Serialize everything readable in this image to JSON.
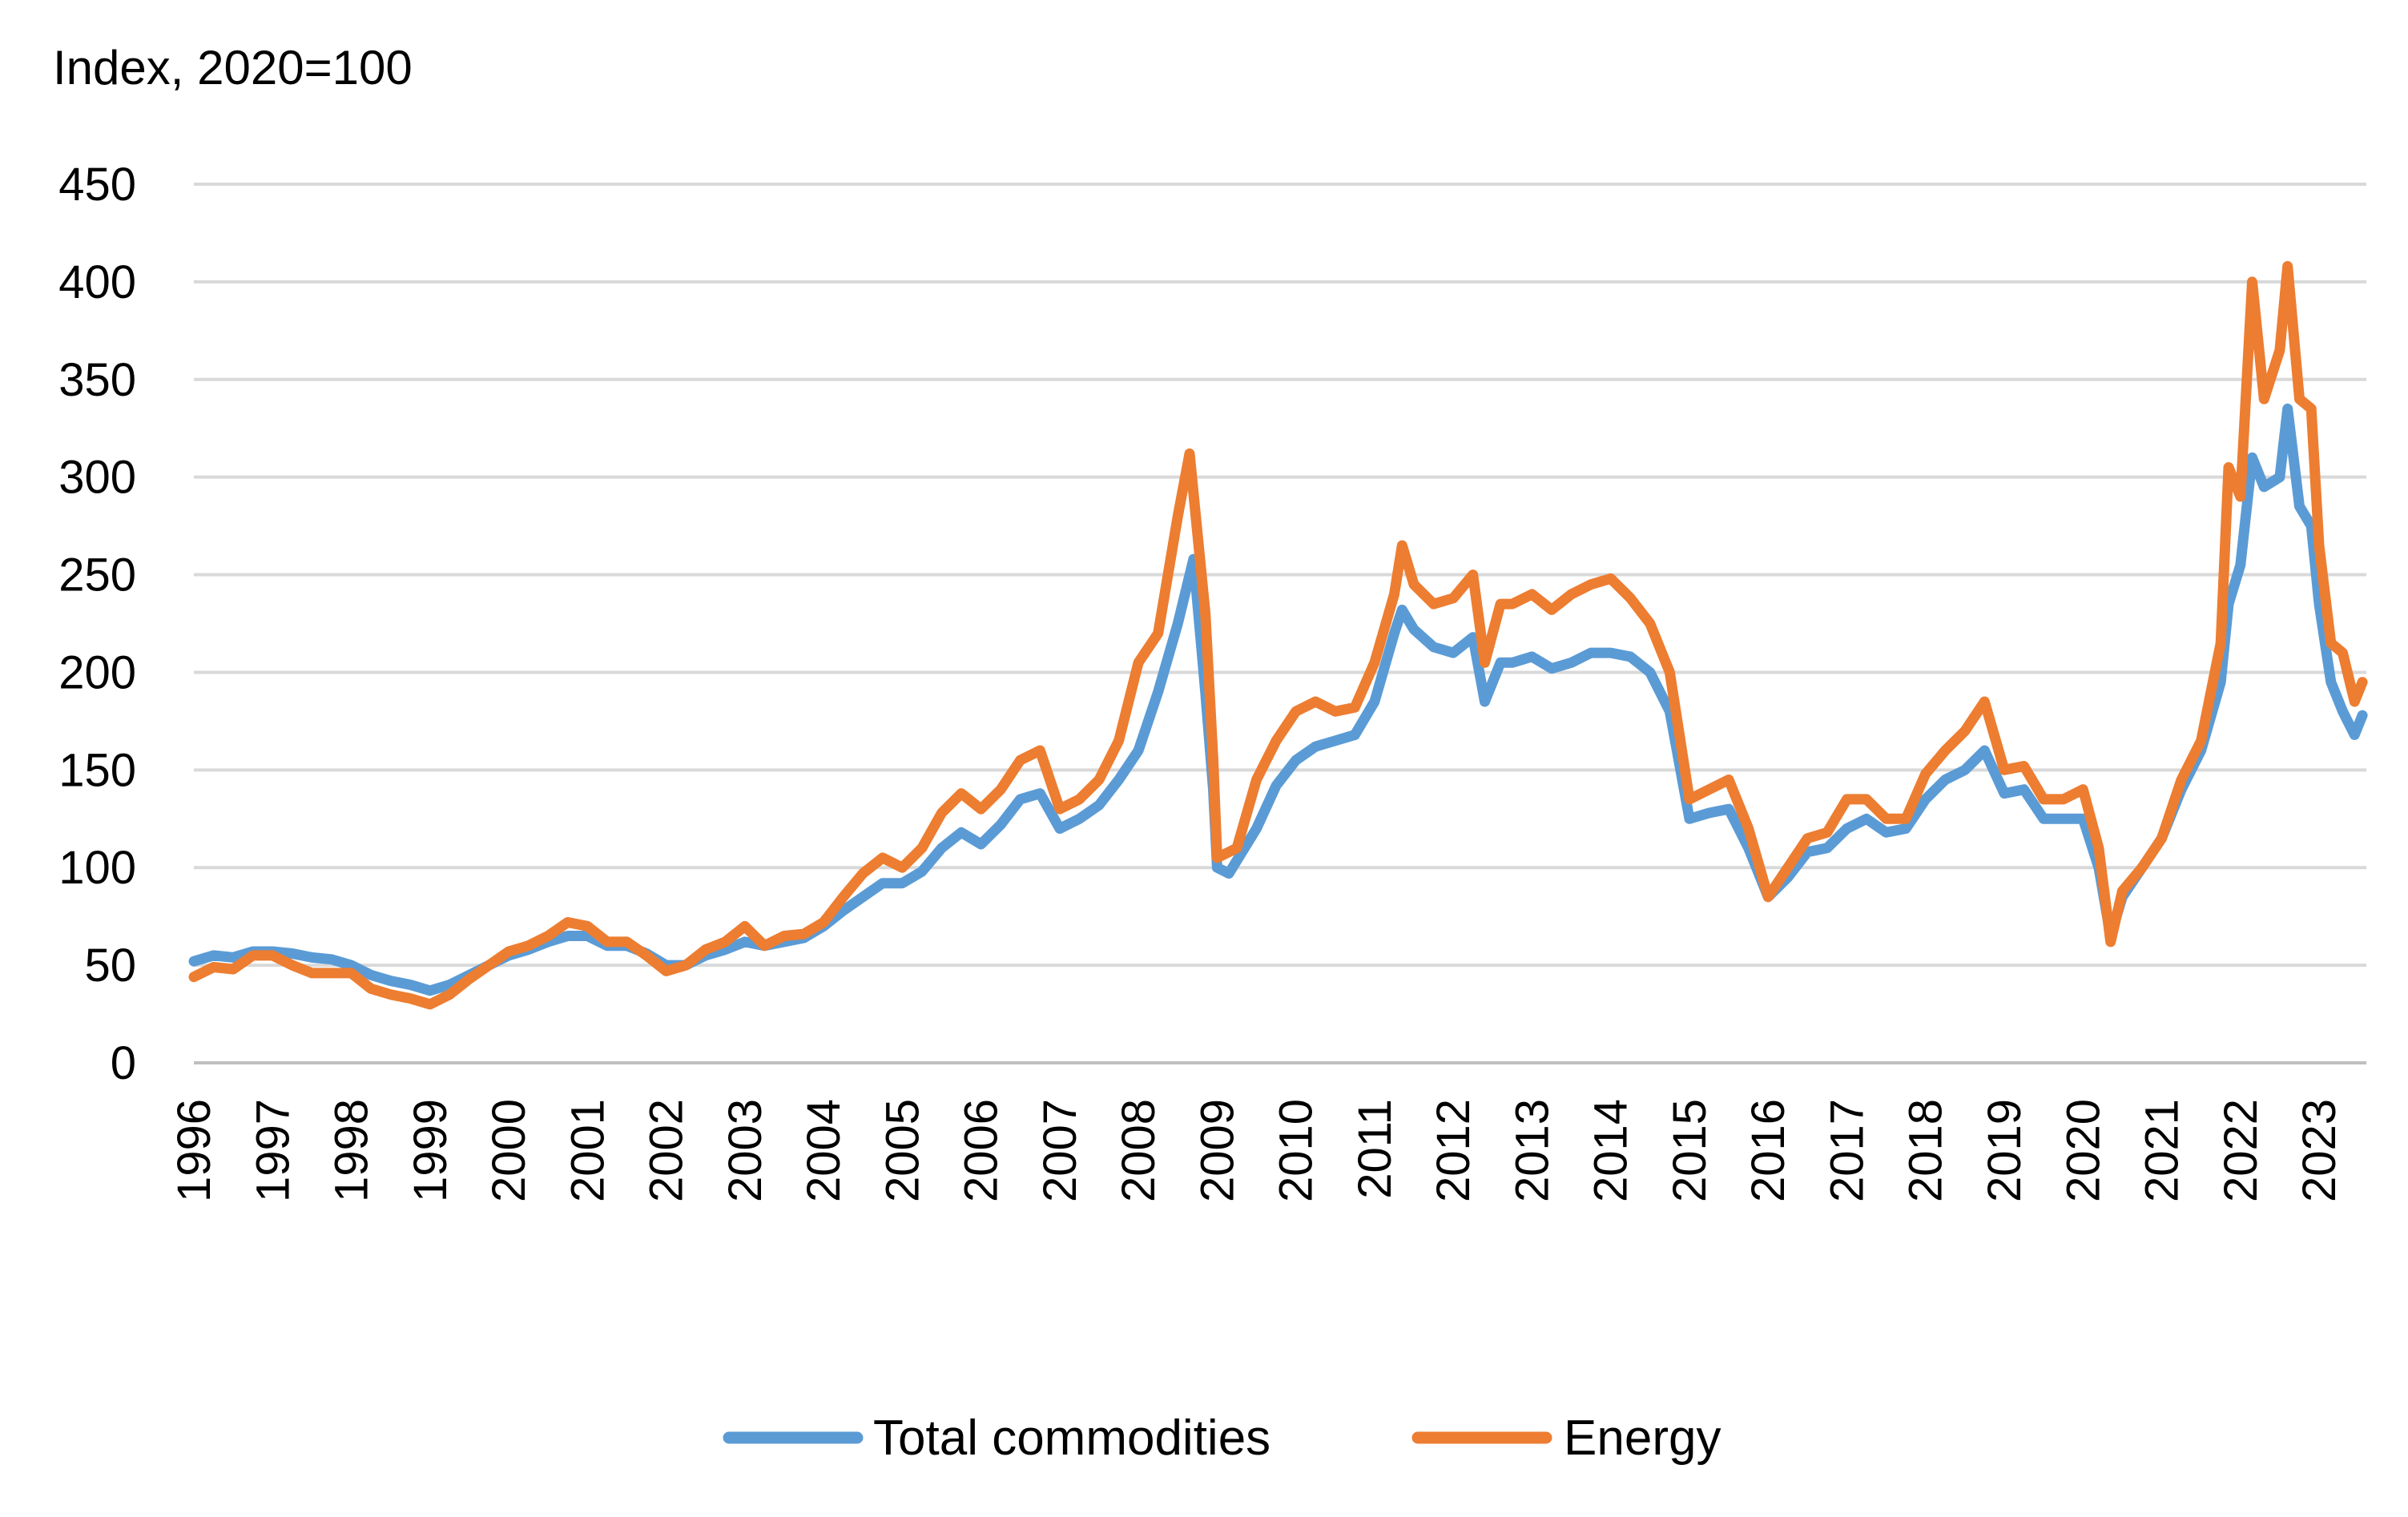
{
  "chart_data": {
    "type": "line",
    "ylabel": "Index, 2020=100",
    "ylim": [
      0,
      450
    ],
    "yticks": [
      0,
      50,
      100,
      150,
      200,
      250,
      300,
      350,
      400,
      450
    ],
    "xlim": [
      1996,
      2023.6
    ],
    "xticks": [
      "1996",
      "1997",
      "1998",
      "1999",
      "2000",
      "2001",
      "2002",
      "2003",
      "2004",
      "2005",
      "2006",
      "2007",
      "2008",
      "2009",
      "2010",
      "2011",
      "2012",
      "2013",
      "2014",
      "2015",
      "2016",
      "2017",
      "2018",
      "2019",
      "2020",
      "2021",
      "2022",
      "2023"
    ],
    "grid": "horizontal",
    "legend_position": "bottom",
    "series": [
      {
        "name": "Total commodities",
        "color": "#5B9BD5",
        "points": [
          [
            1996.0,
            52
          ],
          [
            1996.25,
            55
          ],
          [
            1996.5,
            54
          ],
          [
            1996.75,
            57
          ],
          [
            1997.0,
            57
          ],
          [
            1997.25,
            56
          ],
          [
            1997.5,
            54
          ],
          [
            1997.75,
            53
          ],
          [
            1998.0,
            50
          ],
          [
            1998.25,
            45
          ],
          [
            1998.5,
            42
          ],
          [
            1998.75,
            40
          ],
          [
            1999.0,
            37
          ],
          [
            1999.25,
            40
          ],
          [
            1999.5,
            45
          ],
          [
            1999.75,
            50
          ],
          [
            2000.0,
            55
          ],
          [
            2000.25,
            58
          ],
          [
            2000.5,
            62
          ],
          [
            2000.75,
            65
          ],
          [
            2001.0,
            65
          ],
          [
            2001.25,
            60
          ],
          [
            2001.5,
            60
          ],
          [
            2001.75,
            56
          ],
          [
            2002.0,
            50
          ],
          [
            2002.25,
            50
          ],
          [
            2002.5,
            55
          ],
          [
            2002.75,
            58
          ],
          [
            2003.0,
            62
          ],
          [
            2003.25,
            60
          ],
          [
            2003.5,
            62
          ],
          [
            2003.75,
            64
          ],
          [
            2004.0,
            70
          ],
          [
            2004.25,
            78
          ],
          [
            2004.5,
            85
          ],
          [
            2004.75,
            92
          ],
          [
            2005.0,
            92
          ],
          [
            2005.25,
            98
          ],
          [
            2005.5,
            110
          ],
          [
            2005.75,
            118
          ],
          [
            2006.0,
            112
          ],
          [
            2006.25,
            122
          ],
          [
            2006.5,
            135
          ],
          [
            2006.75,
            138
          ],
          [
            2007.0,
            120
          ],
          [
            2007.25,
            125
          ],
          [
            2007.5,
            132
          ],
          [
            2007.75,
            145
          ],
          [
            2008.0,
            160
          ],
          [
            2008.25,
            190
          ],
          [
            2008.5,
            225
          ],
          [
            2008.7,
            258
          ],
          [
            2008.85,
            190
          ],
          [
            2008.95,
            140
          ],
          [
            2009.0,
            100
          ],
          [
            2009.15,
            97
          ],
          [
            2009.5,
            120
          ],
          [
            2009.75,
            142
          ],
          [
            2010.0,
            155
          ],
          [
            2010.25,
            162
          ],
          [
            2010.5,
            165
          ],
          [
            2010.75,
            168
          ],
          [
            2011.0,
            185
          ],
          [
            2011.25,
            220
          ],
          [
            2011.35,
            232
          ],
          [
            2011.5,
            222
          ],
          [
            2011.75,
            213
          ],
          [
            2012.0,
            210
          ],
          [
            2012.25,
            218
          ],
          [
            2012.4,
            185
          ],
          [
            2012.6,
            205
          ],
          [
            2012.75,
            205
          ],
          [
            2013.0,
            208
          ],
          [
            2013.25,
            202
          ],
          [
            2013.5,
            205
          ],
          [
            2013.75,
            210
          ],
          [
            2014.0,
            210
          ],
          [
            2014.25,
            208
          ],
          [
            2014.5,
            200
          ],
          [
            2014.75,
            180
          ],
          [
            2015.0,
            125
          ],
          [
            2015.25,
            128
          ],
          [
            2015.5,
            130
          ],
          [
            2015.75,
            110
          ],
          [
            2016.0,
            85
          ],
          [
            2016.25,
            95
          ],
          [
            2016.5,
            108
          ],
          [
            2016.75,
            110
          ],
          [
            2017.0,
            120
          ],
          [
            2017.25,
            125
          ],
          [
            2017.5,
            118
          ],
          [
            2017.75,
            120
          ],
          [
            2018.0,
            135
          ],
          [
            2018.25,
            145
          ],
          [
            2018.5,
            150
          ],
          [
            2018.75,
            160
          ],
          [
            2019.0,
            138
          ],
          [
            2019.25,
            140
          ],
          [
            2019.5,
            125
          ],
          [
            2019.75,
            125
          ],
          [
            2020.0,
            125
          ],
          [
            2020.2,
            100
          ],
          [
            2020.35,
            65
          ],
          [
            2020.5,
            85
          ],
          [
            2020.75,
            100
          ],
          [
            2021.0,
            115
          ],
          [
            2021.25,
            140
          ],
          [
            2021.5,
            160
          ],
          [
            2021.75,
            195
          ],
          [
            2021.85,
            235
          ],
          [
            2022.0,
            255
          ],
          [
            2022.15,
            310
          ],
          [
            2022.3,
            295
          ],
          [
            2022.5,
            300
          ],
          [
            2022.6,
            335
          ],
          [
            2022.75,
            285
          ],
          [
            2022.9,
            275
          ],
          [
            2023.0,
            235
          ],
          [
            2023.15,
            195
          ],
          [
            2023.3,
            180
          ],
          [
            2023.45,
            168
          ],
          [
            2023.55,
            178
          ]
        ]
      },
      {
        "name": "Energy",
        "color": "#ED7D31",
        "points": [
          [
            1996.0,
            44
          ],
          [
            1996.25,
            49
          ],
          [
            1996.5,
            48
          ],
          [
            1996.75,
            55
          ],
          [
            1997.0,
            55
          ],
          [
            1997.25,
            50
          ],
          [
            1997.5,
            46
          ],
          [
            1997.75,
            46
          ],
          [
            1998.0,
            46
          ],
          [
            1998.25,
            38
          ],
          [
            1998.5,
            35
          ],
          [
            1998.75,
            33
          ],
          [
            1999.0,
            30
          ],
          [
            1999.25,
            35
          ],
          [
            1999.5,
            43
          ],
          [
            1999.75,
            50
          ],
          [
            2000.0,
            57
          ],
          [
            2000.25,
            60
          ],
          [
            2000.5,
            65
          ],
          [
            2000.75,
            72
          ],
          [
            2001.0,
            70
          ],
          [
            2001.25,
            62
          ],
          [
            2001.5,
            62
          ],
          [
            2001.75,
            55
          ],
          [
            2002.0,
            47
          ],
          [
            2002.25,
            50
          ],
          [
            2002.5,
            58
          ],
          [
            2002.75,
            62
          ],
          [
            2003.0,
            70
          ],
          [
            2003.25,
            60
          ],
          [
            2003.5,
            65
          ],
          [
            2003.75,
            66
          ],
          [
            2004.0,
            72
          ],
          [
            2004.25,
            85
          ],
          [
            2004.5,
            97
          ],
          [
            2004.75,
            105
          ],
          [
            2005.0,
            100
          ],
          [
            2005.25,
            110
          ],
          [
            2005.5,
            128
          ],
          [
            2005.75,
            138
          ],
          [
            2006.0,
            130
          ],
          [
            2006.25,
            140
          ],
          [
            2006.5,
            155
          ],
          [
            2006.75,
            160
          ],
          [
            2007.0,
            130
          ],
          [
            2007.25,
            135
          ],
          [
            2007.5,
            145
          ],
          [
            2007.75,
            165
          ],
          [
            2008.0,
            205
          ],
          [
            2008.25,
            220
          ],
          [
            2008.5,
            280
          ],
          [
            2008.65,
            312
          ],
          [
            2008.85,
            230
          ],
          [
            2008.95,
            155
          ],
          [
            2009.0,
            105
          ],
          [
            2009.25,
            110
          ],
          [
            2009.5,
            145
          ],
          [
            2009.75,
            165
          ],
          [
            2010.0,
            180
          ],
          [
            2010.25,
            185
          ],
          [
            2010.5,
            180
          ],
          [
            2010.75,
            182
          ],
          [
            2011.0,
            205
          ],
          [
            2011.25,
            240
          ],
          [
            2011.35,
            265
          ],
          [
            2011.5,
            245
          ],
          [
            2011.75,
            235
          ],
          [
            2012.0,
            238
          ],
          [
            2012.25,
            250
          ],
          [
            2012.4,
            205
          ],
          [
            2012.6,
            235
          ],
          [
            2012.75,
            235
          ],
          [
            2013.0,
            240
          ],
          [
            2013.25,
            232
          ],
          [
            2013.5,
            240
          ],
          [
            2013.75,
            245
          ],
          [
            2014.0,
            248
          ],
          [
            2014.25,
            238
          ],
          [
            2014.5,
            225
          ],
          [
            2014.75,
            200
          ],
          [
            2015.0,
            135
          ],
          [
            2015.25,
            140
          ],
          [
            2015.5,
            145
          ],
          [
            2015.75,
            120
          ],
          [
            2016.0,
            85
          ],
          [
            2016.25,
            100
          ],
          [
            2016.5,
            115
          ],
          [
            2016.75,
            118
          ],
          [
            2017.0,
            135
          ],
          [
            2017.25,
            135
          ],
          [
            2017.5,
            125
          ],
          [
            2017.75,
            125
          ],
          [
            2018.0,
            148
          ],
          [
            2018.25,
            160
          ],
          [
            2018.5,
            170
          ],
          [
            2018.75,
            185
          ],
          [
            2019.0,
            150
          ],
          [
            2019.25,
            152
          ],
          [
            2019.5,
            135
          ],
          [
            2019.75,
            135
          ],
          [
            2020.0,
            140
          ],
          [
            2020.2,
            110
          ],
          [
            2020.35,
            62
          ],
          [
            2020.5,
            88
          ],
          [
            2020.75,
            100
          ],
          [
            2021.0,
            115
          ],
          [
            2021.25,
            145
          ],
          [
            2021.5,
            165
          ],
          [
            2021.75,
            215
          ],
          [
            2021.85,
            305
          ],
          [
            2022.0,
            290
          ],
          [
            2022.15,
            400
          ],
          [
            2022.3,
            340
          ],
          [
            2022.5,
            365
          ],
          [
            2022.6,
            408
          ],
          [
            2022.75,
            340
          ],
          [
            2022.9,
            335
          ],
          [
            2023.0,
            265
          ],
          [
            2023.15,
            215
          ],
          [
            2023.3,
            210
          ],
          [
            2023.45,
            185
          ],
          [
            2023.55,
            195
          ]
        ]
      }
    ]
  }
}
